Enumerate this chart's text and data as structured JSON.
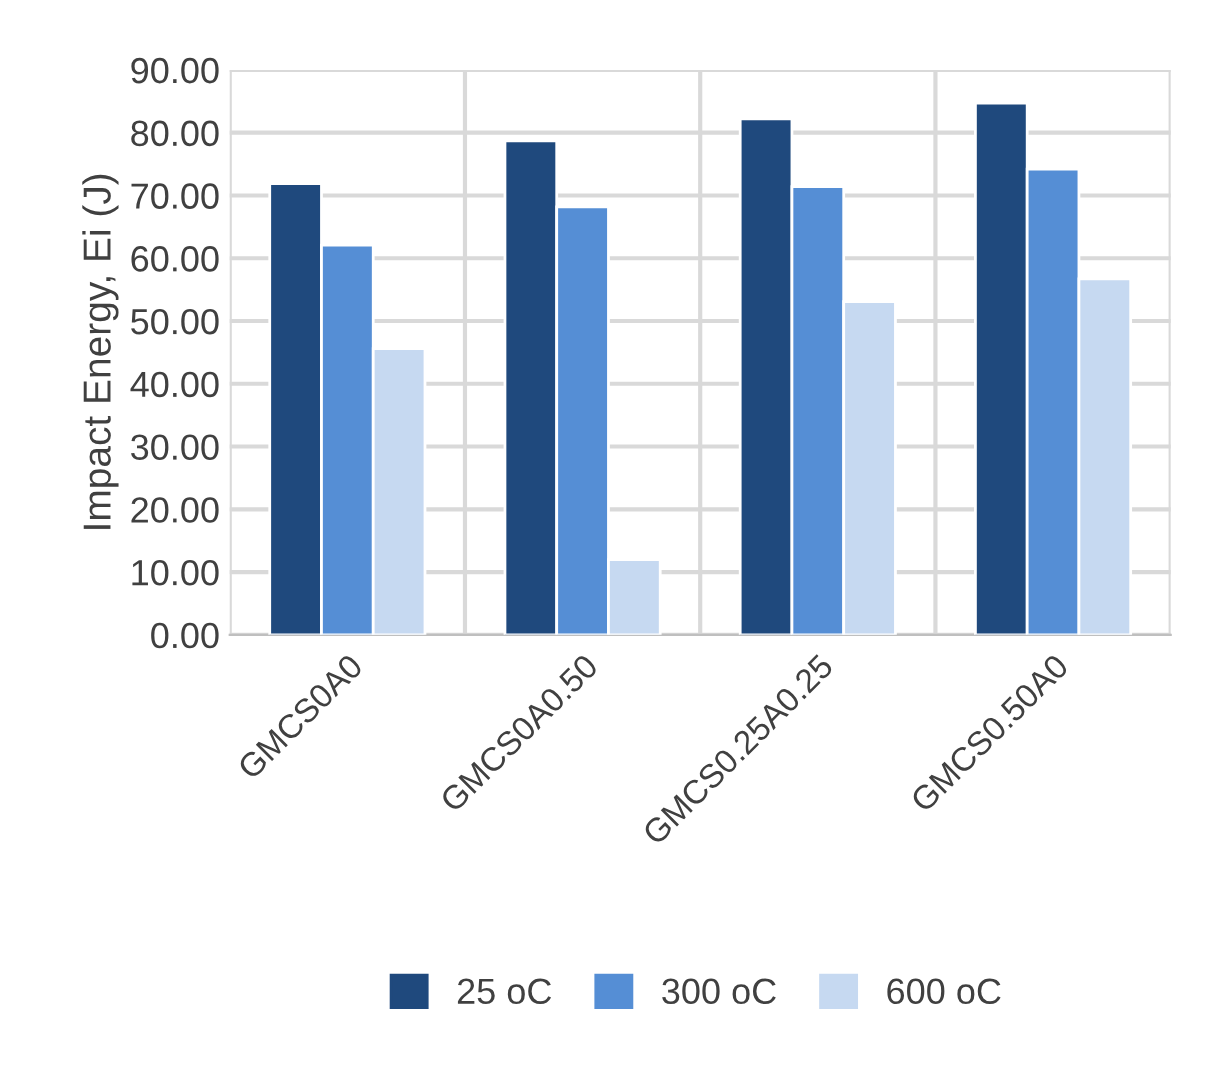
{
  "chart_data": {
    "type": "bar",
    "ylabel": "Impact Energy, Ei (J)",
    "categories": [
      "GMCS0A0",
      "GMCS0A0.50",
      "GMCS0.25A0.25",
      "GMCS0.50A0"
    ],
    "series": [
      {
        "name": "25 oC",
        "color": "#1f497d",
        "values": [
          71.9,
          78.7,
          82.2,
          84.7
        ]
      },
      {
        "name": "300 oC",
        "color": "#558ed5",
        "values": [
          62.1,
          68.2,
          71.4,
          74.2
        ]
      },
      {
        "name": "600 oC",
        "color": "#c6d9f1",
        "values": [
          45.6,
          12.0,
          53.1,
          56.7
        ]
      }
    ],
    "ylim": [
      0,
      90
    ],
    "yticks": [
      {
        "value": 0,
        "label": "0.00"
      },
      {
        "value": 10,
        "label": "10.00"
      },
      {
        "value": 20,
        "label": "20.00"
      },
      {
        "value": 30,
        "label": "30.00"
      },
      {
        "value": 40,
        "label": "40.00"
      },
      {
        "value": 50,
        "label": "50.00"
      },
      {
        "value": 60,
        "label": "60.00"
      },
      {
        "value": 70,
        "label": "70.00"
      },
      {
        "value": 80,
        "label": "80.00"
      },
      {
        "value": 90,
        "label": "90.00"
      }
    ],
    "grid": true,
    "legend": "bottom"
  }
}
